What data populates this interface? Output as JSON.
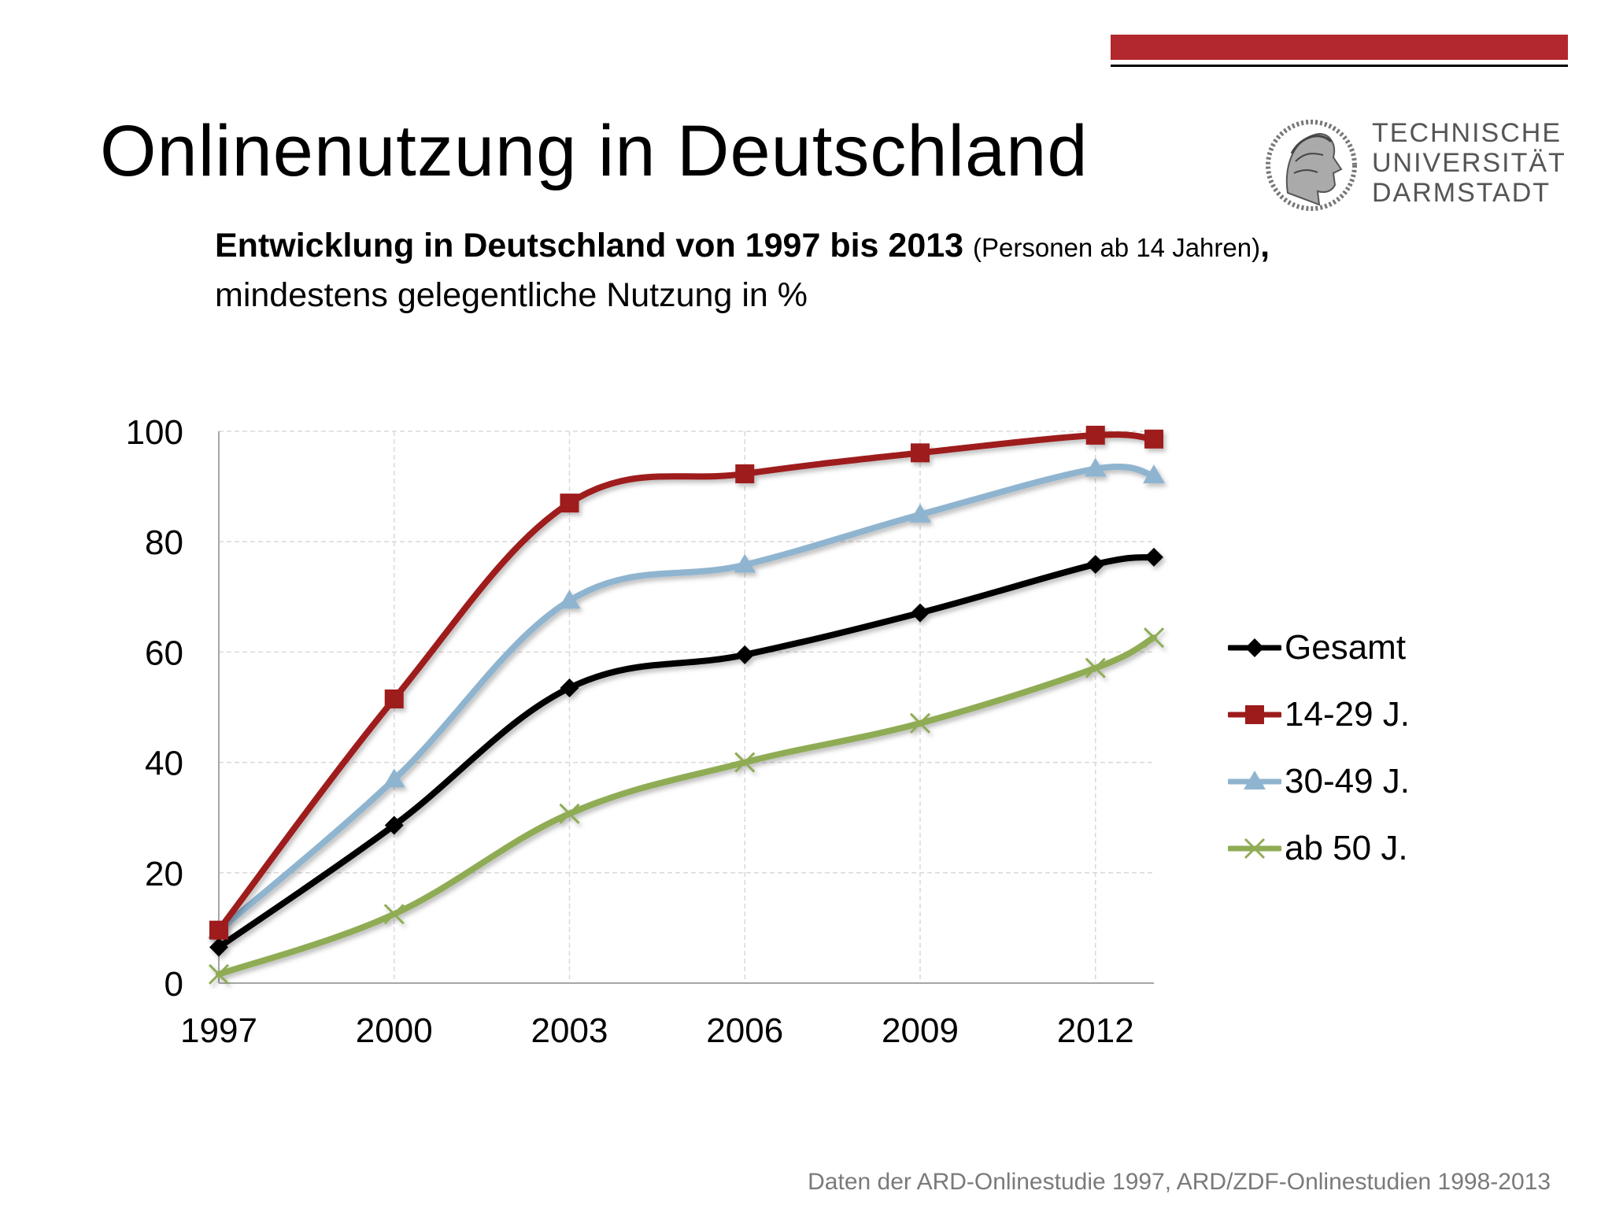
{
  "slide": {
    "title": "Onlinenutzung in Deutschland",
    "subtitle_bold": "Entwicklung in Deutschland von 1997 bis 2013",
    "subtitle_small": "(Personen ab 14 Jahren)",
    "subtitle_comma": ",",
    "subtitle_line2": "mindestens gelegentliche Nutzung in %",
    "source": "Daten der ARD-Onlinestudie 1997, ARD/ZDF-Onlinestudien 1998-2013",
    "accent_color": "#b3282e"
  },
  "logo": {
    "line1": "TECHNISCHE",
    "line2": "UNIVERSITÄT",
    "line3": "DARMSTADT",
    "icon": "tu-darmstadt-athena-seal"
  },
  "chart_data": {
    "type": "line",
    "x": [
      1997,
      2000,
      2003,
      2006,
      2009,
      2012,
      2013
    ],
    "xticks": [
      "1997",
      "2000",
      "2003",
      "2006",
      "2009",
      "2012"
    ],
    "yticks": [
      "0",
      "20",
      "40",
      "60",
      "80",
      "100"
    ],
    "xlim": [
      1997,
      2013
    ],
    "ylim": [
      0,
      100
    ],
    "grid": true,
    "legend_position": "right",
    "series": [
      {
        "name": "Gesamt",
        "color": "#000000",
        "marker": "diamond",
        "values": [
          6.5,
          28.6,
          53.5,
          59.5,
          67.1,
          75.9,
          77.2
        ]
      },
      {
        "name": "14-29 J.",
        "color": "#9e1b1b",
        "marker": "square",
        "values": [
          9.6,
          51.5,
          87.0,
          92.3,
          96.1,
          99.3,
          98.6
        ]
      },
      {
        "name": "30-49 J.",
        "color": "#8fb4cf",
        "marker": "triangle",
        "values": [
          9.5,
          36.9,
          69.3,
          75.8,
          84.9,
          93.2,
          92.0
        ]
      },
      {
        "name": "ab 50 J.",
        "color": "#8fac55",
        "marker": "x",
        "values": [
          1.6,
          12.5,
          30.7,
          40.0,
          47.1,
          57.1,
          62.6
        ]
      }
    ]
  }
}
